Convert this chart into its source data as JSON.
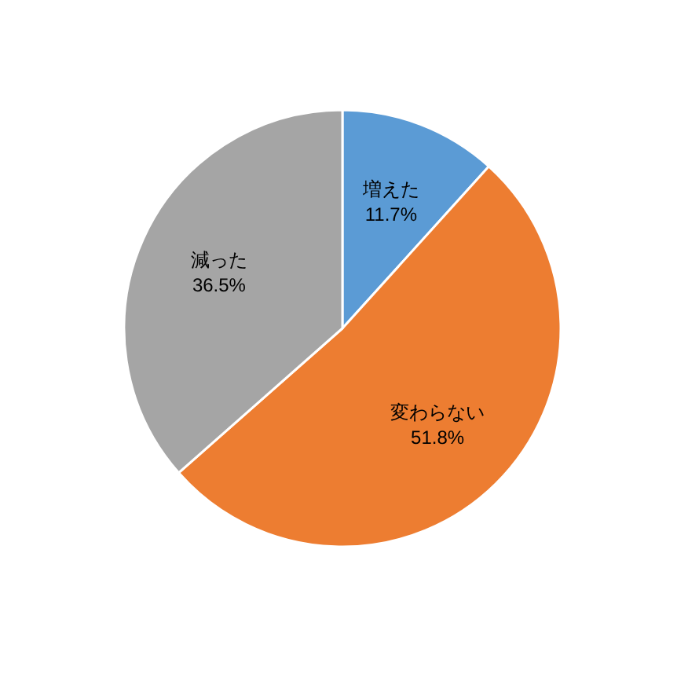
{
  "chart_data": {
    "type": "pie",
    "categories": [
      "増えた",
      "変わらない",
      "減った"
    ],
    "values": [
      11.7,
      51.8,
      36.5
    ],
    "value_labels": [
      "11.7%",
      "51.8%",
      "36.5%"
    ],
    "colors": [
      "#5b9bd5",
      "#ed7d31",
      "#a5a5a5"
    ]
  }
}
